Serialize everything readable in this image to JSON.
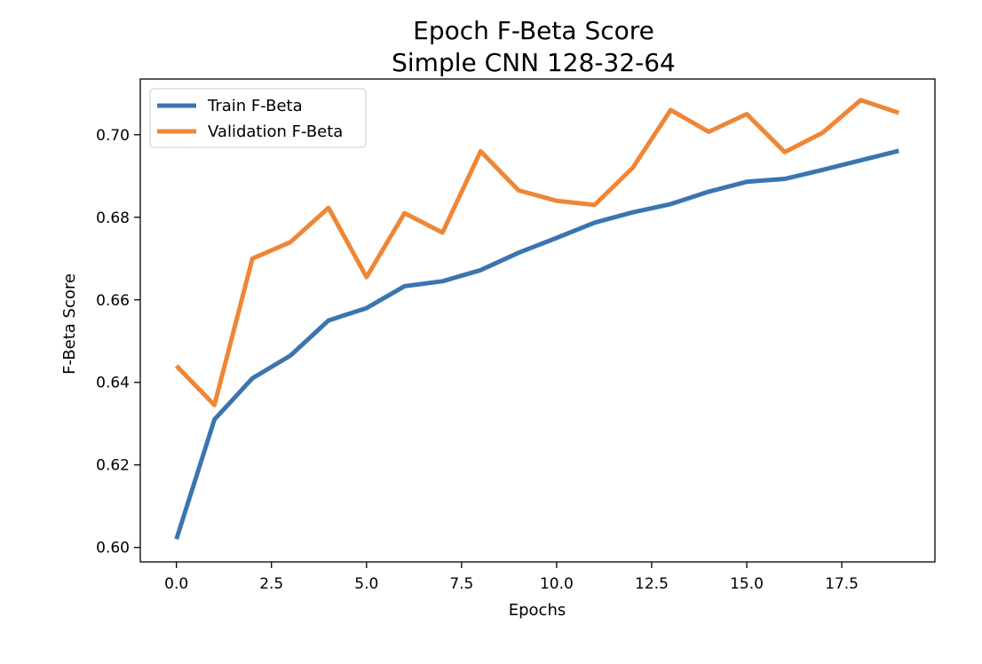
{
  "chart_data": {
    "type": "line",
    "title": "Epoch F-Beta Score",
    "subtitle": "Simple CNN 128-32-64",
    "xlabel": "Epochs",
    "ylabel": "F-Beta Score",
    "xlim": [
      -0.95,
      19.95
    ],
    "ylim": [
      0.5965,
      0.7135
    ],
    "x_ticks": [
      0.0,
      2.5,
      5.0,
      7.5,
      10.0,
      12.5,
      15.0,
      17.5
    ],
    "x_tick_labels": [
      "0.0",
      "2.5",
      "5.0",
      "7.5",
      "10.0",
      "12.5",
      "15.0",
      "17.5"
    ],
    "y_ticks": [
      0.6,
      0.62,
      0.64,
      0.66,
      0.68,
      0.7
    ],
    "y_tick_labels": [
      "0.60",
      "0.62",
      "0.64",
      "0.66",
      "0.68",
      "0.70"
    ],
    "grid": false,
    "legend_position": "top-left",
    "x": [
      0,
      1,
      2,
      3,
      4,
      5,
      6,
      7,
      8,
      9,
      10,
      11,
      12,
      13,
      14,
      15,
      16,
      17,
      18,
      19
    ],
    "series": [
      {
        "name": "Train F-Beta",
        "color": "#3a75b0",
        "values": [
          0.602,
          0.631,
          0.641,
          0.6465,
          0.655,
          0.658,
          0.6633,
          0.6645,
          0.6672,
          0.6714,
          0.675,
          0.6787,
          0.6812,
          0.6832,
          0.6862,
          0.6886,
          0.6893,
          0.6915,
          0.6938,
          0.6961
        ]
      },
      {
        "name": "Validation F-Beta",
        "color": "#ef8636",
        "values": [
          0.644,
          0.6345,
          0.67,
          0.674,
          0.6823,
          0.6655,
          0.681,
          0.6763,
          0.696,
          0.6865,
          0.684,
          0.683,
          0.692,
          0.706,
          0.7007,
          0.705,
          0.6958,
          0.7005,
          0.7084,
          0.7053
        ]
      }
    ]
  }
}
